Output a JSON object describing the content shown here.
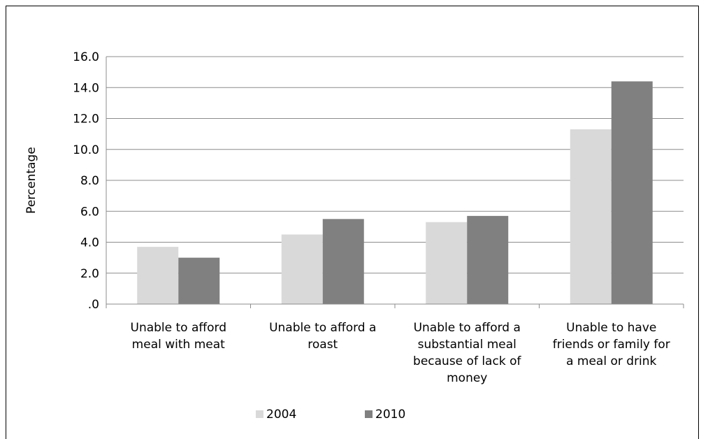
{
  "chart_data": {
    "type": "bar",
    "title": "",
    "xlabel": "",
    "ylabel": "Percentage",
    "ylim": [
      0,
      16
    ],
    "ytick_labels": [
      ".0",
      "2.0",
      "4.0",
      "6.0",
      "8.0",
      "10.0",
      "12.0",
      "14.0",
      "16.0"
    ],
    "grid": true,
    "legend_position": "bottom",
    "categories": [
      [
        "Unable to afford",
        "meal with meat"
      ],
      [
        "Unable to afford a",
        "roast"
      ],
      [
        "Unable to afford a",
        "substantial meal",
        "because of lack of",
        "money"
      ],
      [
        "Unable to have",
        "friends or family for",
        "a meal or drink"
      ]
    ],
    "series": [
      {
        "name": "2004",
        "color": "#d9d9d9",
        "values": [
          3.7,
          4.5,
          5.3,
          11.3
        ]
      },
      {
        "name": "2010",
        "color": "#808080",
        "values": [
          3.0,
          5.5,
          5.7,
          14.4
        ]
      }
    ]
  }
}
